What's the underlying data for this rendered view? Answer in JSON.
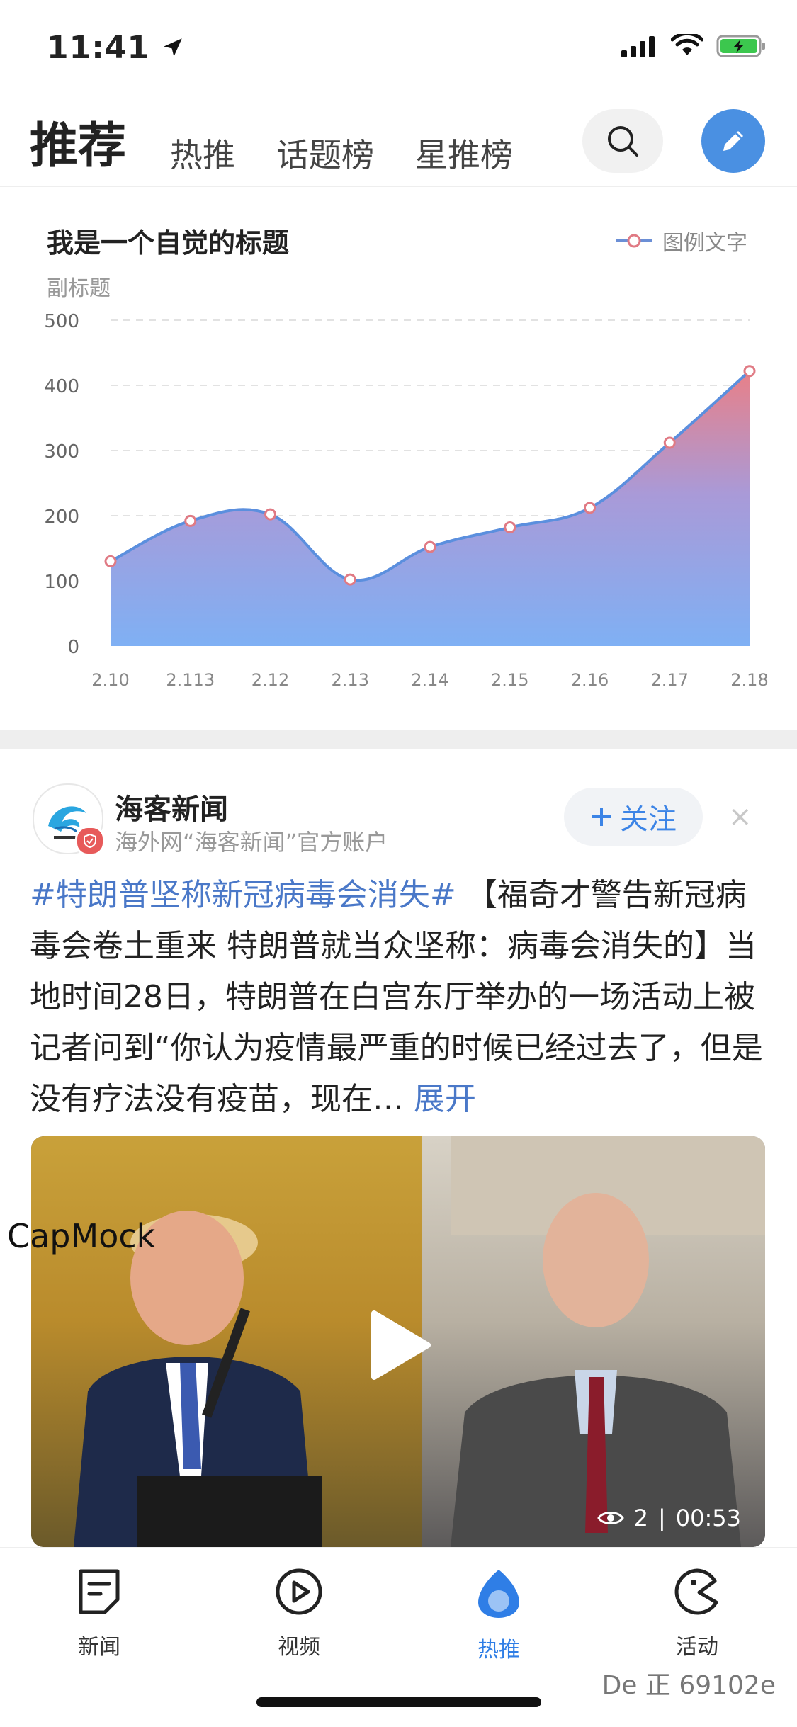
{
  "status_bar": {
    "time": "11:41"
  },
  "top_nav": {
    "tabs": [
      {
        "label": "推荐",
        "active": true
      },
      {
        "label": "热推",
        "active": false
      },
      {
        "label": "话题榜",
        "active": false
      },
      {
        "label": "星推榜",
        "active": false
      }
    ],
    "search_icon": "search-icon",
    "edit_icon": "pencil-icon"
  },
  "chart_card": {
    "title": "我是一个自觉的标题",
    "subtitle": "副标题",
    "legend_label": "图例文字"
  },
  "chart_data": {
    "type": "area",
    "title": "我是一个自觉的标题",
    "subtitle": "副标题",
    "xlabel": "",
    "ylabel": "",
    "x": [
      "2.10",
      "2.113",
      "2.12",
      "2.13",
      "2.14",
      "2.15",
      "2.16",
      "2.17",
      "2.18"
    ],
    "y_ticks": [
      0,
      100,
      200,
      300,
      400,
      500
    ],
    "ylim": [
      0,
      500
    ],
    "grid": true,
    "legend_position": "top-right",
    "series": [
      {
        "name": "图例文字",
        "values": [
          130,
          192,
          202,
          102,
          152,
          182,
          212,
          312,
          422
        ]
      }
    ],
    "colors": {
      "line": "#5b8fde",
      "area_top": "#e88088",
      "area_bottom": "#7fb0f4"
    }
  },
  "post": {
    "author_name": "海客新闻",
    "author_desc": "海外网“海客新闻”官方账户",
    "follow_label": "关注",
    "close_label": "×",
    "hashtag": "#特朗普坚称新冠病毒会消失#",
    "body": "【福奇才警告新冠病毒会卷土重来 特朗普就当众坚称：病毒会消失的】当地时间28日，特朗普在白宫东厅举办的一场活动上被记者问到“你认为疫情最严重的时候已经过去了，但是没有疗法没有疫苗，现在…",
    "expand_label": "展开",
    "video": {
      "views": "2",
      "separator": "|",
      "duration": "00:53"
    }
  },
  "overlay_text": "CapMock",
  "bottom_nav": {
    "items": [
      {
        "label": "新闻",
        "icon": "news-icon",
        "active": false
      },
      {
        "label": "视频",
        "icon": "play-circle-icon",
        "active": false
      },
      {
        "label": "热推",
        "icon": "hot-icon",
        "active": true
      },
      {
        "label": "活动",
        "icon": "activity-icon",
        "active": false
      }
    ]
  },
  "corner_text": "De 正 69102e"
}
